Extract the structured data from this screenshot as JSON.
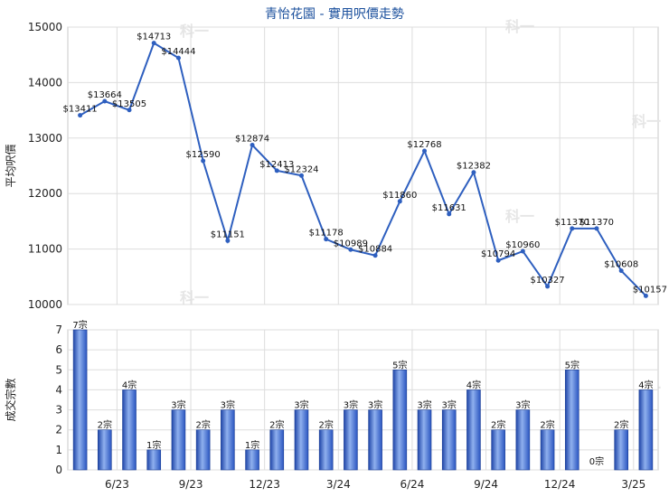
{
  "chart_data": [
    {
      "type": "line",
      "title": "青怡花園 - 實用呎價走勢",
      "ylabel": "平均呎價",
      "ylim": [
        10000,
        15000
      ],
      "yticks": [
        10000,
        11000,
        12000,
        13000,
        14000,
        15000
      ],
      "x_ticks": [
        "6/23",
        "9/23",
        "12/23",
        "3/24",
        "6/24",
        "9/24",
        "12/24",
        "3/25"
      ],
      "grid": true,
      "values": [
        13411,
        13664,
        13505,
        14713,
        14444,
        12590,
        11151,
        12874,
        12413,
        12324,
        11178,
        10989,
        10884,
        11860,
        12768,
        11631,
        12382,
        10794,
        10960,
        10327,
        11370,
        11370,
        10608,
        10157
      ],
      "labels": [
        "$13411",
        "$13664",
        "$13505",
        "$14713",
        "$14444",
        "$12590",
        "$11151",
        "$12874",
        "$12413",
        "$12324",
        "$11178",
        "$10989",
        "$10884",
        "$11860",
        "$12768",
        "$11631",
        "$12382",
        "$10794",
        "$10960",
        "$10327",
        "$11370",
        "$11370",
        "$10608",
        "$10157"
      ],
      "color": "#2e5fbf"
    },
    {
      "type": "bar",
      "ylabel": "成交宗數",
      "ylim": [
        0,
        7
      ],
      "yticks": [
        0,
        1,
        2,
        3,
        4,
        5,
        6,
        7
      ],
      "x_ticks": [
        "6/23",
        "9/23",
        "12/23",
        "3/24",
        "6/24",
        "9/24",
        "12/24",
        "3/25"
      ],
      "grid": true,
      "values": [
        7,
        2,
        4,
        1,
        3,
        2,
        3,
        1,
        2,
        3,
        2,
        3,
        3,
        5,
        3,
        3,
        4,
        2,
        3,
        2,
        5,
        0,
        2,
        4
      ],
      "labels": [
        "7宗",
        "2宗",
        "4宗",
        "1宗",
        "3宗",
        "2宗",
        "3宗",
        "1宗",
        "2宗",
        "3宗",
        "2宗",
        "3宗",
        "3宗",
        "5宗",
        "3宗",
        "3宗",
        "4宗",
        "2宗",
        "3宗",
        "2宗",
        "5宗",
        "0宗",
        "2宗",
        "4宗"
      ],
      "color": "#3a63c8"
    }
  ],
  "watermark": "科一"
}
